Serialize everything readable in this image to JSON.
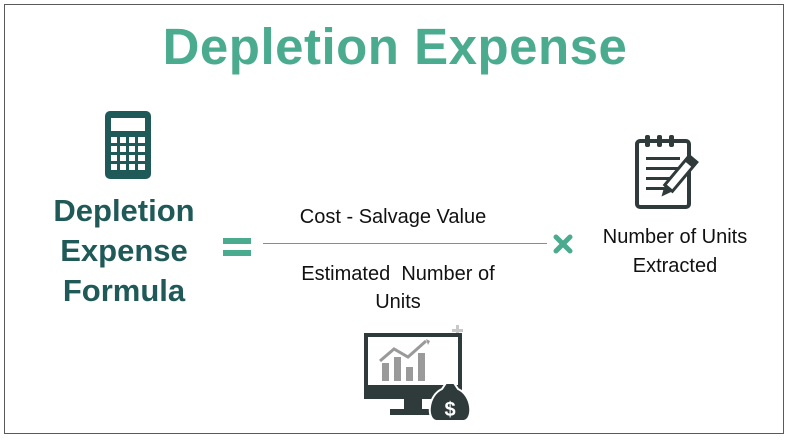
{
  "title": "Depletion Expense",
  "formula_label": {
    "line1": "Depletion",
    "line2": "Expense",
    "line3": "Formula"
  },
  "numerator": "Cost - Salvage Value",
  "denominator": {
    "line1": "Estimated  Number of",
    "line2": "Units"
  },
  "multiplier": {
    "line1": "Number of Units",
    "line2": "Extracted"
  },
  "icons": {
    "calculator": "calculator-icon",
    "equals": "equals-icon",
    "multiply": "multiply-icon",
    "notepad": "notepad-pencil-icon",
    "monitor": "monitor-chart-money-icon"
  },
  "colors": {
    "title": "#4aab8f",
    "formula_label": "#1f5a58",
    "operators": "#4aab8f",
    "icons": "#2f3a3a"
  }
}
